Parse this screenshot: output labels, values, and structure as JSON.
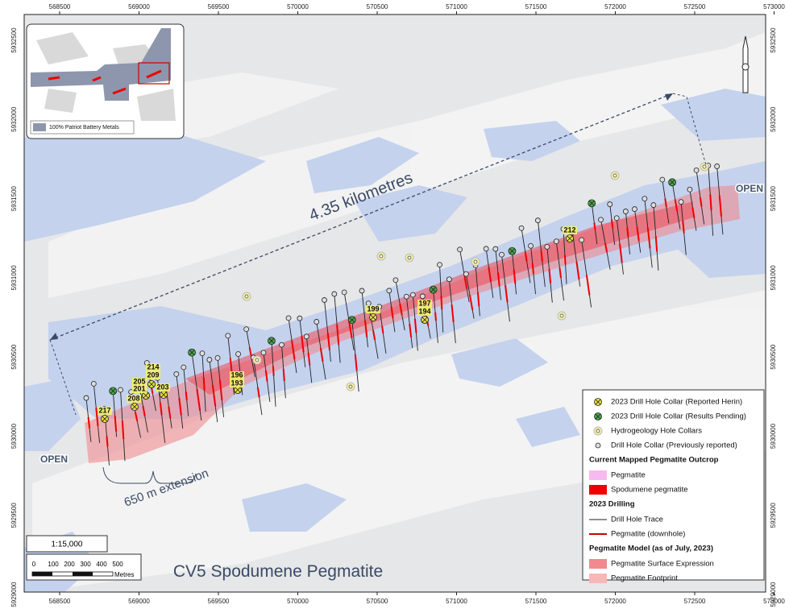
{
  "title": "CV5 Spodumene Pegmatite",
  "grid": {
    "x_labels": [
      "568500",
      "569000",
      "569500",
      "570000",
      "570500",
      "571000",
      "571500",
      "572000",
      "572500",
      "573000"
    ],
    "y_labels": [
      "5932500",
      "5932000",
      "5931500",
      "5931000",
      "5930500",
      "5930000",
      "5929500",
      "5929000"
    ]
  },
  "annotations": {
    "distance": "4.35 kilometres",
    "extension": "650 m extension",
    "open_west": "OPEN",
    "open_east": "OPEN"
  },
  "hole_labels": [
    "217",
    "208",
    "205",
    "201",
    "214",
    "209",
    "203",
    "196",
    "193",
    "199",
    "197",
    "194",
    "212"
  ],
  "scale": {
    "ratio": "1:15,000",
    "ticks": [
      "0",
      "100",
      "200",
      "300",
      "400",
      "500"
    ],
    "unit": "Metres"
  },
  "inset": {
    "legend": "100% Patriot Battery Metals"
  },
  "legend": {
    "collars": [
      "2023 Drill Hole Collar (Reported Herin)",
      "2023 Drill Hole Collar (Results Pending)",
      "Hydrogeology Hole Collars",
      "Drill Hole Collar (Previously reported)"
    ],
    "outcrop_header": "Current Mapped Pegmatite Outcrop",
    "outcrop": [
      "Pegmatite",
      "Spodumene pegmatite"
    ],
    "drilling_header": "2023 Drilling",
    "drilling": [
      "Drill Hole Trace",
      "Pegmatite (downhole)"
    ],
    "model_header": "Pegmatite Model (as of July, 2023)",
    "model": [
      "Pegmatite Surface Expression",
      "Pegmatite Footprint"
    ]
  }
}
